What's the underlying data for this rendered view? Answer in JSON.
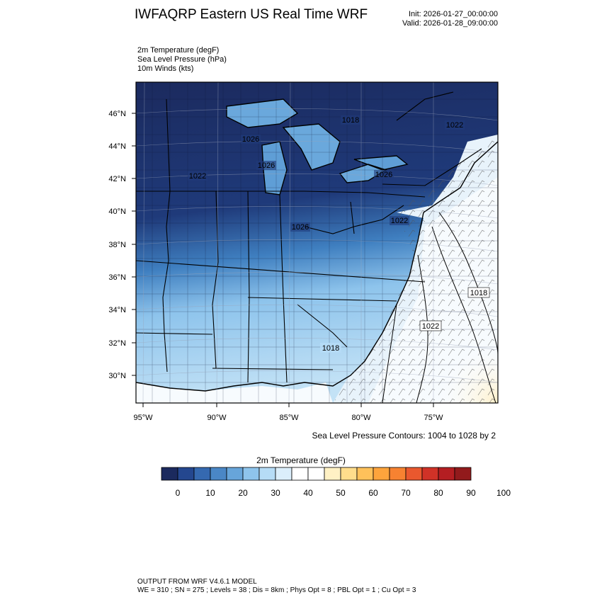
{
  "header": {
    "title": "IWFAQRP Eastern US Real Time WRF",
    "init": "Init: 2026-01-27_00:00:00",
    "valid": "Valid: 2026-01-28_09:00:00"
  },
  "fields": [
    "2m Temperature   (degF)",
    "Sea Level Pressure   (hPa)",
    "10m Winds   (kts)"
  ],
  "map": {
    "lat_labels": [
      "46°N",
      "44°N",
      "42°N",
      "40°N",
      "38°N",
      "36°N",
      "34°N",
      "32°N",
      "30°N"
    ],
    "lon_labels": [
      "95°W",
      "90°W",
      "85°W",
      "80°W",
      "75°W"
    ],
    "pressure_labels": [
      "1018",
      "1022",
      "1026",
      "1026",
      "1022",
      "1026",
      "1026",
      "1022",
      "1018",
      "1018",
      "1022"
    ]
  },
  "slp_note": "Sea Level Pressure Contours: 1004 to 1028 by 2",
  "colorbar": {
    "title": "2m Temperature  (degF)",
    "tick_labels": [
      "0",
      "10",
      "20",
      "30",
      "40",
      "50",
      "60",
      "70",
      "80",
      "90",
      "100"
    ],
    "colors": [
      "#1b2a5e",
      "#24478f",
      "#3569b0",
      "#4a87c6",
      "#67a5da",
      "#8ec4ec",
      "#b6dcf6",
      "#dbeefb",
      "#ffffff",
      "#ffffff",
      "#fff1c4",
      "#ffdd8c",
      "#ffc15a",
      "#fda43c",
      "#f78231",
      "#e9582e",
      "#d03227",
      "#b41e22",
      "#921a1c"
    ]
  },
  "footer": {
    "line1": "OUTPUT FROM WRF V4.6.1 MODEL",
    "line2": "WE = 310 ; SN = 275 ; Levels = 38 ; Dis = 8km ; Phys Opt = 8 ; PBL Opt = 1 ; Cu Opt = 3"
  }
}
